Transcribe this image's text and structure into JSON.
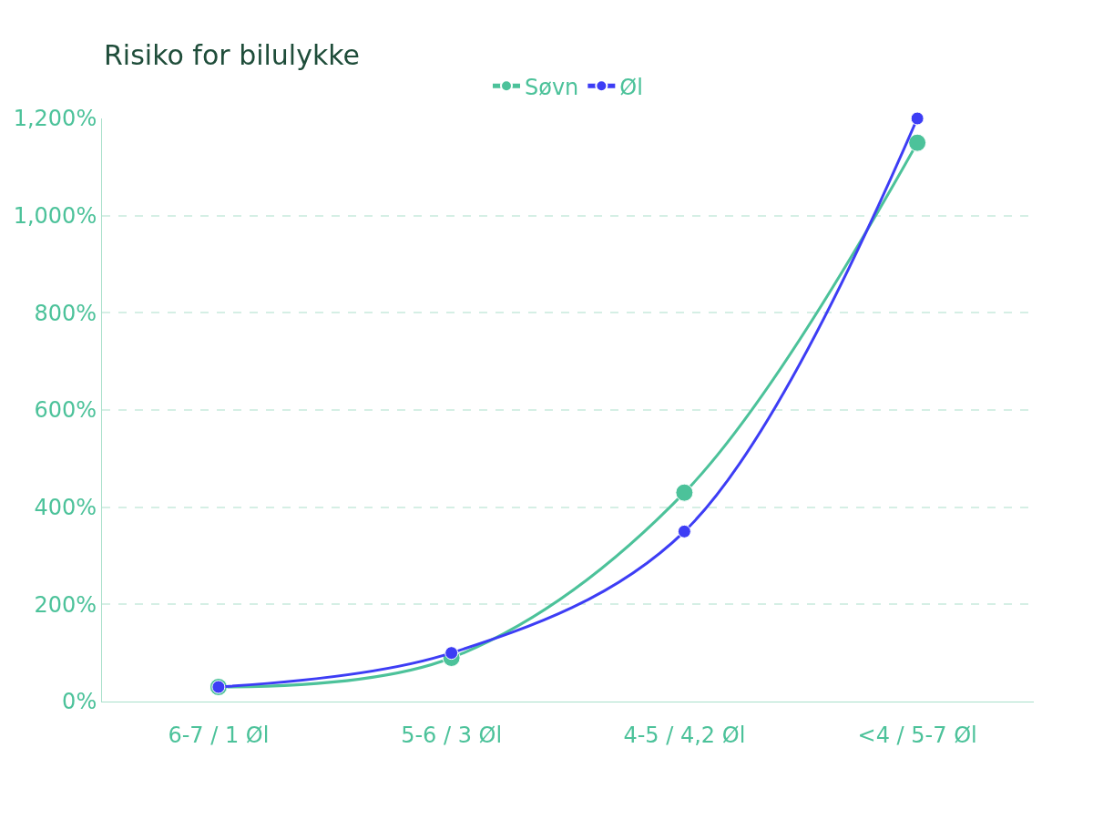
{
  "chart_data": {
    "type": "line",
    "title": "Risiko for bilulykke",
    "categories": [
      "6-7 / 1 Øl",
      "5-6 / 3 Øl",
      "4-5 / 4,2 Øl",
      "<4 / 5-7 Øl"
    ],
    "series": [
      {
        "name": "Søvn",
        "color": "#4cc29a",
        "values": [
          30,
          90,
          430,
          1150
        ]
      },
      {
        "name": "Øl",
        "color": "#3d3df5",
        "values": [
          30,
          100,
          350,
          1200
        ]
      }
    ],
    "ylim": [
      0,
      1200
    ],
    "yticks": [
      {
        "value": 0,
        "label": "0%"
      },
      {
        "value": 200,
        "label": "200%"
      },
      {
        "value": 400,
        "label": "400%"
      },
      {
        "value": 600,
        "label": "600%"
      },
      {
        "value": 800,
        "label": "800%"
      },
      {
        "value": 1000,
        "label": "1,000%"
      },
      {
        "value": 1200,
        "label": "1,200%"
      }
    ],
    "grid": "y",
    "legend": "top",
    "marker": "circle",
    "line_style": "solid"
  }
}
